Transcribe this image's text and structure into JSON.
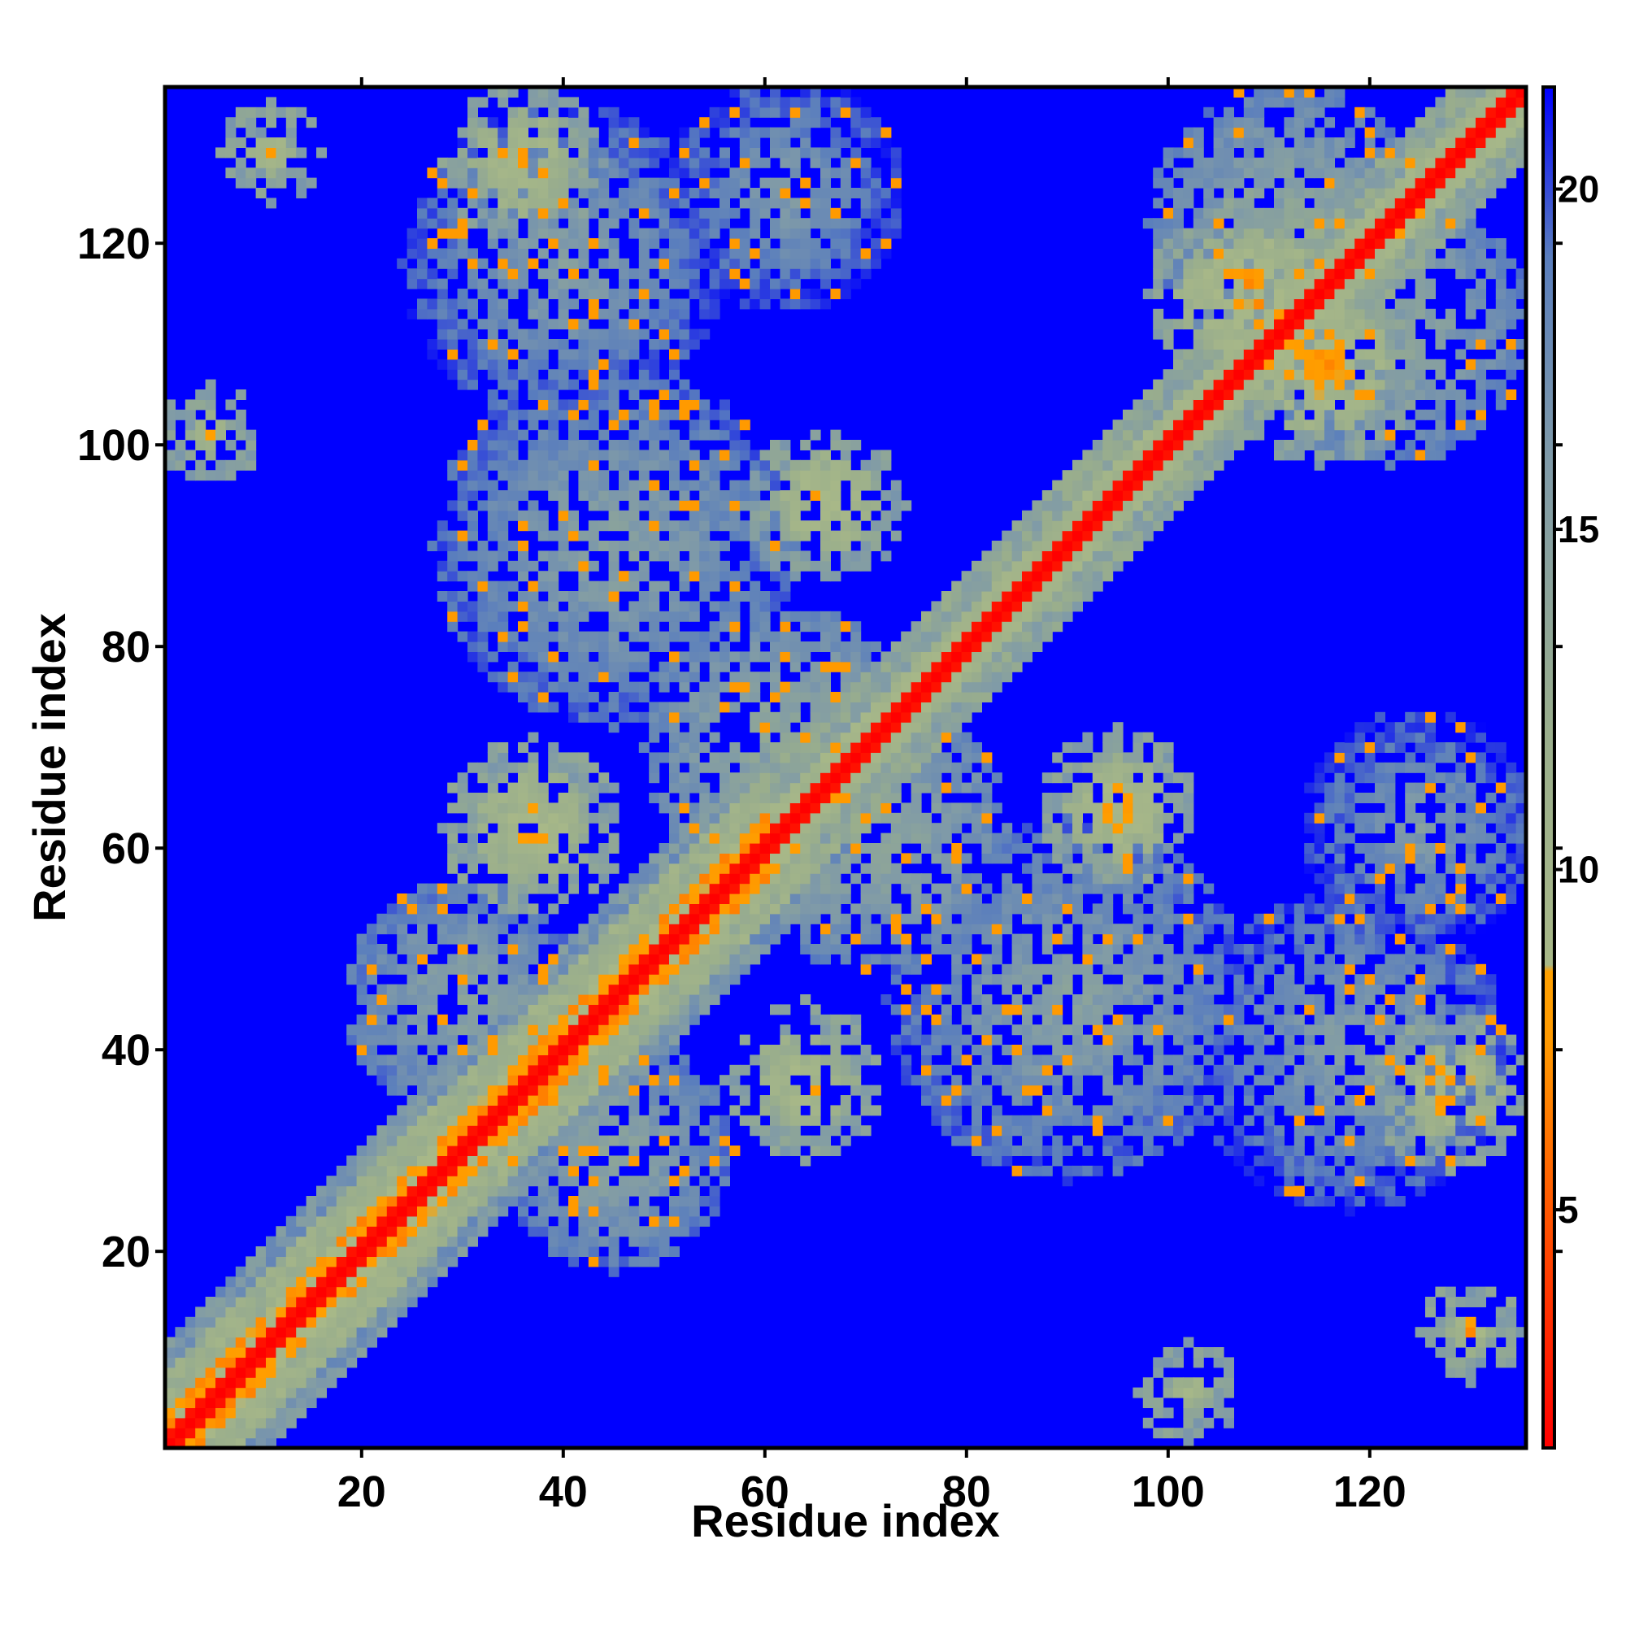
{
  "chart_data": {
    "type": "heatmap",
    "title": "",
    "xlabel": "Residue index",
    "ylabel": "Residue index",
    "n_residues": 135,
    "xlim": [
      1,
      135
    ],
    "ylim": [
      1,
      135
    ],
    "x_ticks": [
      20,
      40,
      60,
      80,
      100,
      120
    ],
    "y_ticks": [
      20,
      40,
      60,
      80,
      100,
      120
    ],
    "colorbar": {
      "ticks": [
        5,
        10,
        15,
        20
      ],
      "range": [
        1.5,
        21.5
      ],
      "color_stops": [
        {
          "value": 1.5,
          "color": "#ff0000"
        },
        {
          "value": 4.0,
          "color": "#ff3c00"
        },
        {
          "value": 7.5,
          "color": "#ff9a00"
        },
        {
          "value": 8.5,
          "color": "#ffa000"
        },
        {
          "value": 8.6,
          "color": "#a8b888"
        },
        {
          "value": 12.0,
          "color": "#9aae8c"
        },
        {
          "value": 16.0,
          "color": "#7f9aa8"
        },
        {
          "value": 19.0,
          "color": "#5a7ebd"
        },
        {
          "value": 21.5,
          "color": "#0000ff"
        }
      ],
      "background_color": "#0000ff"
    },
    "contact_regions": [
      {
        "kind": "diagonal",
        "from": 1,
        "to": 135,
        "value": 1.0
      },
      {
        "kind": "band",
        "x_from": 1,
        "x_to": 60,
        "offset": 3,
        "value": 6.5
      },
      {
        "kind": "band",
        "x_from": 1,
        "x_to": 60,
        "offset": 6,
        "value": 11.5
      },
      {
        "kind": "band",
        "x_from": 60,
        "x_to": 135,
        "offset": 3,
        "value": 9.0
      },
      {
        "kind": "cluster",
        "cx": 37,
        "cy": 62,
        "r": 6,
        "value": 7.0
      },
      {
        "kind": "cluster",
        "cx": 64,
        "cy": 37,
        "r": 5,
        "value": 7.0
      },
      {
        "kind": "cluster",
        "cx": 66,
        "cy": 94,
        "r": 5,
        "value": 6.5
      },
      {
        "kind": "cluster",
        "cx": 95,
        "cy": 64,
        "r": 5,
        "value": 6.5
      },
      {
        "kind": "cluster",
        "cx": 115,
        "cy": 108,
        "r": 7,
        "value": 6.0
      },
      {
        "kind": "cluster",
        "cx": 108,
        "cy": 115,
        "r": 7,
        "value": 6.0
      },
      {
        "kind": "cluster",
        "cx": 36,
        "cy": 128,
        "r": 5,
        "value": 6.5
      },
      {
        "kind": "cluster",
        "cx": 128,
        "cy": 36,
        "r": 5,
        "value": 6.5
      },
      {
        "kind": "cluster",
        "cx": 11,
        "cy": 129,
        "r": 2,
        "value": 6.0
      },
      {
        "kind": "cluster",
        "cx": 5,
        "cy": 101,
        "r": 2,
        "value": 7.0
      },
      {
        "kind": "cluster",
        "cx": 102,
        "cy": 6,
        "r": 2,
        "value": 7.0
      },
      {
        "kind": "cluster",
        "cx": 130,
        "cy": 12,
        "r": 2,
        "value": 6.0
      },
      {
        "kind": "diffuse",
        "cx": 45,
        "cy": 90,
        "r": 18,
        "value": 13.5
      },
      {
        "kind": "diffuse",
        "cx": 90,
        "cy": 45,
        "r": 18,
        "value": 13.5
      },
      {
        "kind": "diffuse",
        "cx": 40,
        "cy": 118,
        "r": 16,
        "value": 14.0
      },
      {
        "kind": "diffuse",
        "cx": 118,
        "cy": 40,
        "r": 16,
        "value": 14.0
      },
      {
        "kind": "diffuse",
        "cx": 62,
        "cy": 125,
        "r": 12,
        "value": 14.5
      },
      {
        "kind": "diffuse",
        "cx": 125,
        "cy": 62,
        "r": 12,
        "value": 14.5
      },
      {
        "kind": "diffuse",
        "cx": 30,
        "cy": 45,
        "r": 12,
        "value": 13.0
      },
      {
        "kind": "diffuse",
        "cx": 45,
        "cy": 30,
        "r": 12,
        "value": 13.0
      },
      {
        "kind": "diffuse",
        "cx": 112,
        "cy": 122,
        "r": 14,
        "value": 12.5
      },
      {
        "kind": "diffuse",
        "cx": 122,
        "cy": 112,
        "r": 14,
        "value": 12.5
      },
      {
        "kind": "diffuse",
        "cx": 70,
        "cy": 62,
        "r": 14,
        "value": 12.0
      },
      {
        "kind": "diffuse",
        "cx": 62,
        "cy": 70,
        "r": 14,
        "value": 12.0
      }
    ]
  }
}
